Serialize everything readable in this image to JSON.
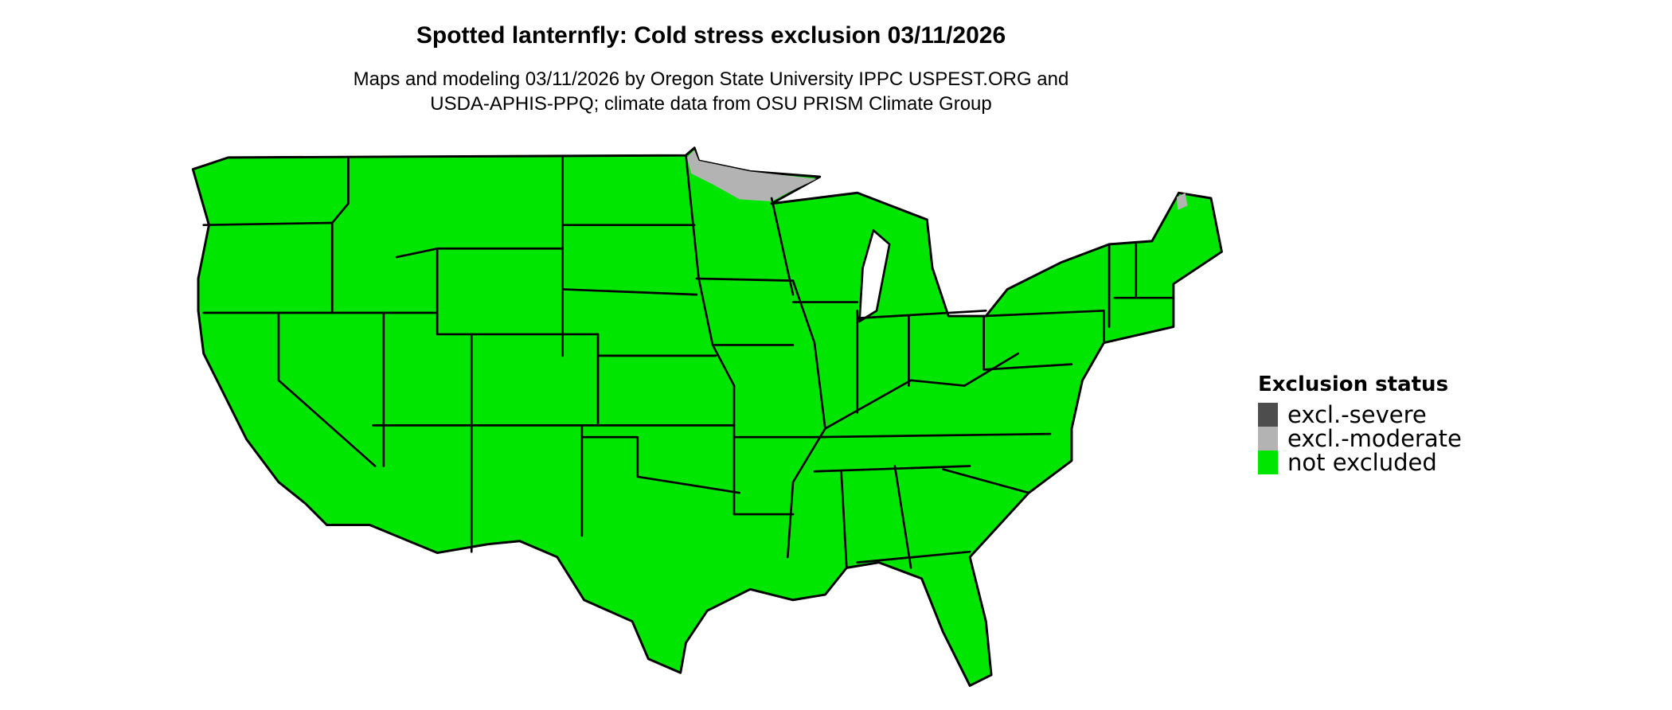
{
  "title": "Spotted lanternfly: Cold stress exclusion 03/11/2026",
  "subtitle_lines": [
    "Maps and modeling 03/11/2026 by Oregon State University IPPC USPEST.ORG and",
    "USDA-APHIS-PPQ; climate data from OSU PRISM Climate Group"
  ],
  "legend": {
    "title": "Exclusion status",
    "items": [
      {
        "label": "excl.-severe",
        "color": "#4d4d4d"
      },
      {
        "label": "excl.-moderate",
        "color": "#b3b3b3"
      },
      {
        "label": "not excluded",
        "color": "#00e600"
      }
    ]
  },
  "map": {
    "region": "Contiguous United States, state boundaries",
    "fill_color": "#00e600",
    "moderate_exclusion_areas": [
      "northeastern Minnesota",
      "northern Maine"
    ]
  }
}
